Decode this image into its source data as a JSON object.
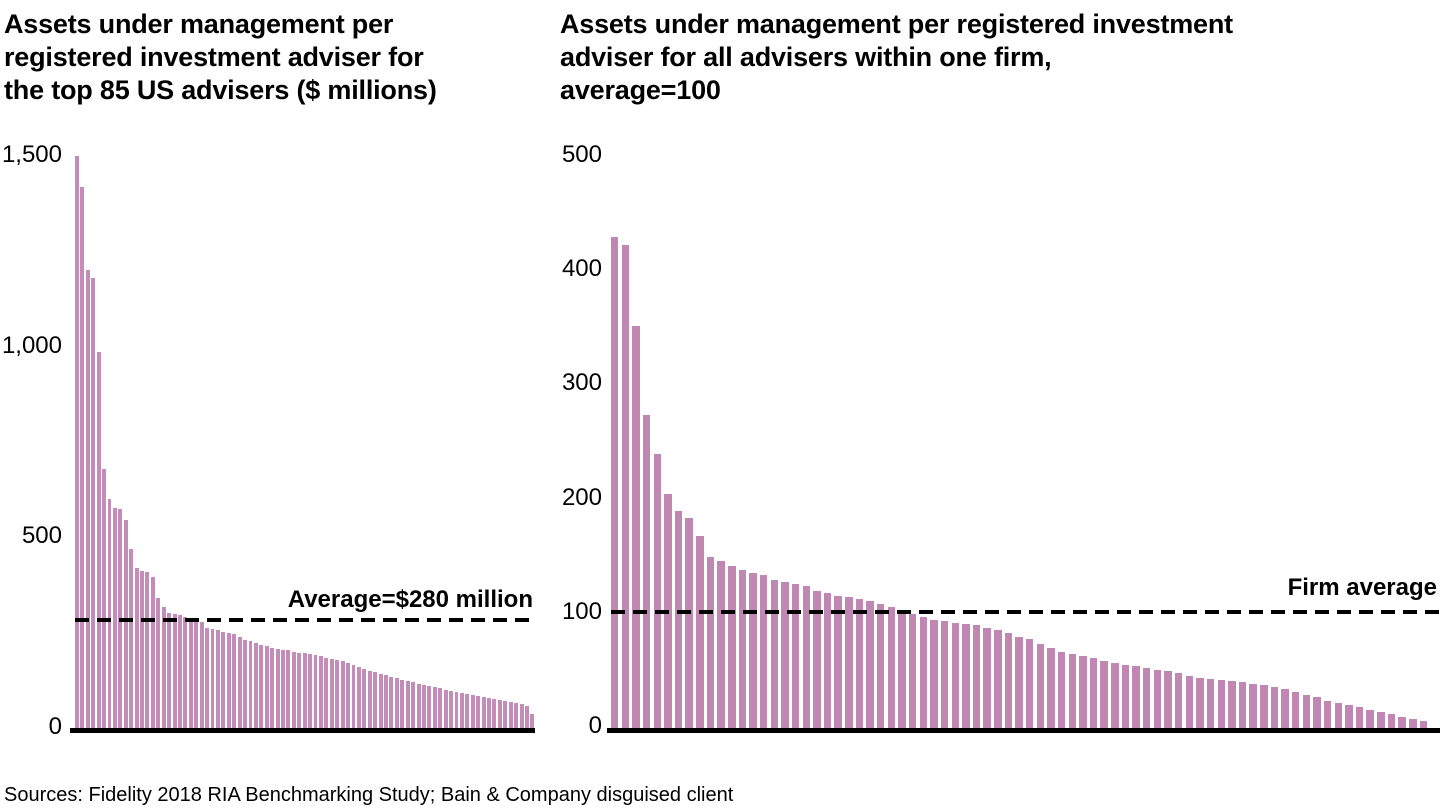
{
  "figure": {
    "source_note": "Sources: Fidelity 2018 RIA Benchmarking Study; Bain & Company disguised client",
    "text_color": "#000000",
    "line_color": "#000000",
    "background": "#ffffff"
  },
  "chart_data": [
    {
      "type": "bar",
      "title": "Assets under management per\nregistered investment adviser for\nthe top 85 US advisers ($ millions)",
      "xlabel": "",
      "ylabel": "",
      "ylim": [
        0,
        1500
      ],
      "grid": false,
      "bar_color": "#c48cb8",
      "y_ticks": [
        {
          "value": 0,
          "label": "0"
        },
        {
          "value": 500,
          "label": "500"
        },
        {
          "value": 1000,
          "label": "1,000"
        },
        {
          "value": 1500,
          "label": "1,500"
        }
      ],
      "average_line": {
        "value": 280,
        "label": "Average=$280 million",
        "style": "dashed"
      },
      "categories_note": "85 advisers, sorted descending",
      "values": [
        1500,
        1420,
        1200,
        1180,
        985,
        680,
        600,
        578,
        575,
        545,
        470,
        421,
        413,
        408,
        395,
        340,
        317,
        302,
        298,
        296,
        291,
        285,
        280,
        277,
        262,
        259,
        256,
        251,
        249,
        246,
        238,
        232,
        228,
        223,
        219,
        215,
        211,
        208,
        206,
        204,
        200,
        198,
        196,
        193,
        191,
        188,
        185,
        182,
        179,
        176,
        171,
        166,
        161,
        156,
        150,
        146,
        142,
        138,
        134,
        131,
        127,
        123,
        120,
        116,
        113,
        110,
        107,
        104,
        100,
        97,
        94,
        91,
        89,
        86,
        84,
        81,
        79,
        76,
        74,
        71,
        68,
        65,
        62,
        58,
        38
      ]
    },
    {
      "type": "bar",
      "title": "Assets under management per registered investment\nadviser for all advisers within one firm,\naverage=100",
      "xlabel": "",
      "ylabel": "",
      "ylim": [
        0,
        500
      ],
      "grid": false,
      "bar_color": "#c187b3",
      "y_ticks": [
        {
          "value": 0,
          "label": "0"
        },
        {
          "value": 100,
          "label": "100"
        },
        {
          "value": 200,
          "label": "200"
        },
        {
          "value": 300,
          "label": "300"
        },
        {
          "value": 400,
          "label": "400"
        },
        {
          "value": 500,
          "label": "500"
        }
      ],
      "average_line": {
        "value": 100,
        "label": "Firm average",
        "style": "dashed"
      },
      "categories_note": "77 advisers, sorted descending",
      "values": [
        430,
        423,
        352,
        274,
        240,
        205,
        190,
        184,
        168,
        150,
        146,
        142,
        138,
        136,
        134,
        130,
        128,
        126,
        124,
        120,
        118,
        116,
        115,
        113,
        111,
        109,
        106,
        103,
        100,
        97,
        95,
        94,
        92,
        91,
        90,
        88,
        86,
        83,
        80,
        78,
        74,
        70,
        67,
        65,
        63,
        61,
        59,
        57,
        55,
        54,
        53,
        51,
        50,
        48,
        46,
        44,
        43,
        42,
        41,
        40,
        39,
        38,
        36,
        34,
        32,
        29,
        27,
        24,
        22,
        20,
        18,
        16,
        14,
        12,
        10,
        8,
        6
      ]
    }
  ]
}
